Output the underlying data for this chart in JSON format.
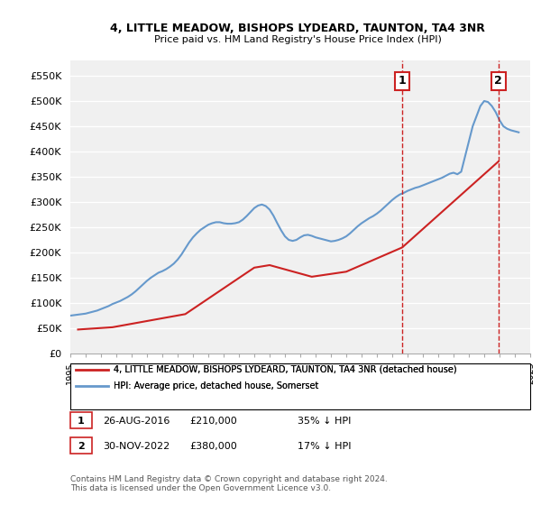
{
  "title": "4, LITTLE MEADOW, BISHOPS LYDEARD, TAUNTON, TA4 3NR",
  "subtitle": "Price paid vs. HM Land Registry's House Price Index (HPI)",
  "background_color": "#ffffff",
  "plot_bg_color": "#f0f0f0",
  "grid_color": "#ffffff",
  "ylim": [
    0,
    580000
  ],
  "yticks": [
    0,
    50000,
    100000,
    150000,
    200000,
    250000,
    300000,
    350000,
    400000,
    450000,
    500000,
    550000
  ],
  "ytick_labels": [
    "£0",
    "£50K",
    "£100K",
    "£150K",
    "£200K",
    "£250K",
    "£300K",
    "£350K",
    "£400K",
    "£450K",
    "£500K",
    "£550K"
  ],
  "hpi_color": "#6699cc",
  "price_color": "#cc2222",
  "marker1_date": 2016.65,
  "marker1_price": 210000,
  "marker2_date": 2022.92,
  "marker2_price": 380000,
  "marker1_label": "1",
  "marker2_label": "2",
  "legend_line1": "4, LITTLE MEADOW, BISHOPS LYDEARD, TAUNTON, TA4 3NR (detached house)",
  "legend_line2": "HPI: Average price, detached house, Somerset",
  "table_row1": [
    "1",
    "26-AUG-2016",
    "£210,000",
    "35% ↓ HPI"
  ],
  "table_row2": [
    "2",
    "30-NOV-2022",
    "£380,000",
    "17% ↓ HPI"
  ],
  "footer": "Contains HM Land Registry data © Crown copyright and database right 2024.\nThis data is licensed under the Open Government Licence v3.0.",
  "hpi_data_x": [
    1995.0,
    1995.25,
    1995.5,
    1995.75,
    1996.0,
    1996.25,
    1996.5,
    1996.75,
    1997.0,
    1997.25,
    1997.5,
    1997.75,
    1998.0,
    1998.25,
    1998.5,
    1998.75,
    1999.0,
    1999.25,
    1999.5,
    1999.75,
    2000.0,
    2000.25,
    2000.5,
    2000.75,
    2001.0,
    2001.25,
    2001.5,
    2001.75,
    2002.0,
    2002.25,
    2002.5,
    2002.75,
    2003.0,
    2003.25,
    2003.5,
    2003.75,
    2004.0,
    2004.25,
    2004.5,
    2004.75,
    2005.0,
    2005.25,
    2005.5,
    2005.75,
    2006.0,
    2006.25,
    2006.5,
    2006.75,
    2007.0,
    2007.25,
    2007.5,
    2007.75,
    2008.0,
    2008.25,
    2008.5,
    2008.75,
    2009.0,
    2009.25,
    2009.5,
    2009.75,
    2010.0,
    2010.25,
    2010.5,
    2010.75,
    2011.0,
    2011.25,
    2011.5,
    2011.75,
    2012.0,
    2012.25,
    2012.5,
    2012.75,
    2013.0,
    2013.25,
    2013.5,
    2013.75,
    2014.0,
    2014.25,
    2014.5,
    2014.75,
    2015.0,
    2015.25,
    2015.5,
    2015.75,
    2016.0,
    2016.25,
    2016.5,
    2016.75,
    2017.0,
    2017.25,
    2017.5,
    2017.75,
    2018.0,
    2018.25,
    2018.5,
    2018.75,
    2019.0,
    2019.25,
    2019.5,
    2019.75,
    2020.0,
    2020.25,
    2020.5,
    2020.75,
    2021.0,
    2021.25,
    2021.5,
    2021.75,
    2022.0,
    2022.25,
    2022.5,
    2022.75,
    2023.0,
    2023.25,
    2023.5,
    2023.75,
    2024.0,
    2024.25
  ],
  "hpi_data_y": [
    75000,
    76000,
    77000,
    78000,
    79000,
    81000,
    83000,
    85000,
    88000,
    91000,
    94000,
    98000,
    101000,
    104000,
    108000,
    112000,
    117000,
    123000,
    130000,
    137000,
    144000,
    150000,
    155000,
    160000,
    163000,
    167000,
    172000,
    178000,
    186000,
    196000,
    208000,
    220000,
    230000,
    238000,
    245000,
    250000,
    255000,
    258000,
    260000,
    260000,
    258000,
    257000,
    257000,
    258000,
    260000,
    265000,
    272000,
    280000,
    288000,
    293000,
    295000,
    292000,
    285000,
    273000,
    258000,
    244000,
    232000,
    225000,
    223000,
    225000,
    230000,
    234000,
    235000,
    233000,
    230000,
    228000,
    226000,
    224000,
    222000,
    223000,
    225000,
    228000,
    232000,
    238000,
    245000,
    252000,
    258000,
    263000,
    268000,
    272000,
    277000,
    283000,
    290000,
    297000,
    304000,
    310000,
    315000,
    318000,
    322000,
    325000,
    328000,
    330000,
    333000,
    336000,
    339000,
    342000,
    345000,
    348000,
    352000,
    356000,
    358000,
    355000,
    360000,
    390000,
    420000,
    450000,
    470000,
    490000,
    500000,
    498000,
    490000,
    478000,
    462000,
    450000,
    445000,
    442000,
    440000,
    438000
  ],
  "price_data_x": [
    1995.5,
    1997.75,
    2002.5,
    2007.0,
    2008.0,
    2010.75,
    2013.0,
    2016.65,
    2022.92
  ],
  "price_data_y": [
    47500,
    52000,
    78000,
    170000,
    175000,
    152000,
    162000,
    210000,
    380000
  ],
  "xmin": 1995.0,
  "xmax": 2025.0
}
